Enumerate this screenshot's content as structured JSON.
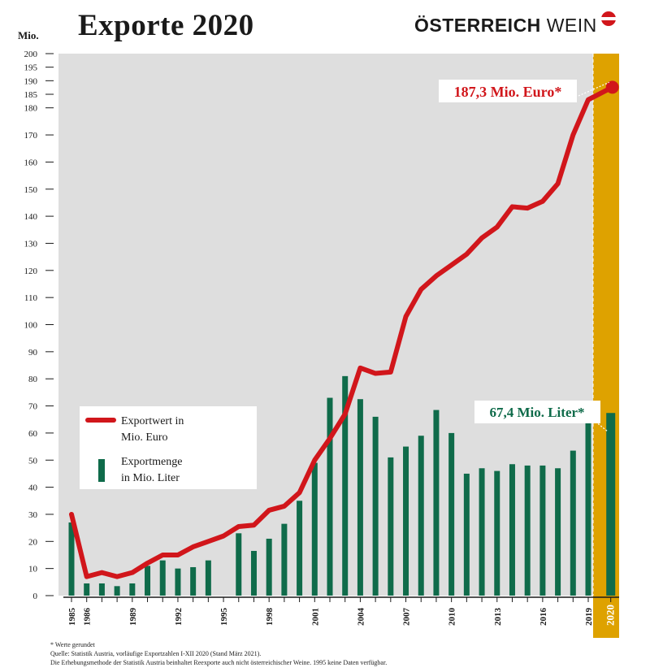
{
  "header": {
    "title": "Exporte 2020",
    "logo_bold": "ÖSTERREICH",
    "logo_light": "WEIN"
  },
  "annotations": {
    "value_label": "187,3 Mio. Euro*",
    "volume_label": "67,4 Mio. Liter*"
  },
  "footnotes": {
    "note": "* Werte gerundet",
    "source": "Quelle: Statistik Austria, vorläufige Exportzahlen I-XII 2020 (Stand März 2021).",
    "method": "Die Erhebungsmethode der Statistik Austria beinhaltet Reexporte auch nicht österreichischer Weine. 1995 keine Daten verfügbar."
  },
  "colors": {
    "line": "#d1161b",
    "bar": "#0f6b4a",
    "plot_bg": "#dedede",
    "highlight": "#dea200"
  },
  "chart_data": {
    "type": "bar",
    "title": "Exporte 2020",
    "ylabel": "Mio.",
    "ylim": [
      0,
      200
    ],
    "yticks": [
      0,
      10,
      20,
      30,
      40,
      50,
      60,
      70,
      80,
      90,
      100,
      110,
      120,
      130,
      140,
      150,
      160,
      170,
      180,
      185,
      190,
      195,
      200
    ],
    "x": [
      1985,
      1986,
      1987,
      1988,
      1989,
      1990,
      1991,
      1992,
      1993,
      1994,
      1995,
      1996,
      1997,
      1998,
      1999,
      2000,
      2001,
      2002,
      2003,
      2004,
      2005,
      2006,
      2007,
      2008,
      2009,
      2010,
      2011,
      2012,
      2013,
      2014,
      2015,
      2016,
      2017,
      2018,
      2019,
      2020
    ],
    "xtick_labels": [
      "1985",
      "1986",
      "1989",
      "1992",
      "1995",
      "1998",
      "2001",
      "2004",
      "2007",
      "2010",
      "2013",
      "2016",
      "2019",
      "2020"
    ],
    "highlight_year": 2020,
    "legend_position": "left",
    "series": [
      {
        "name": "Exportwert in Mio. Euro",
        "type": "line",
        "values": [
          30,
          7,
          8.5,
          7,
          8.5,
          12,
          15,
          15,
          18,
          20,
          22,
          25.5,
          26,
          31.5,
          33,
          38,
          50,
          58,
          67,
          84,
          82,
          82.5,
          103,
          113,
          118,
          122,
          126,
          132,
          136,
          143.5,
          143,
          145.5,
          152,
          170,
          183,
          187.3
        ]
      },
      {
        "name": "Exportmenge in Mio. Liter",
        "type": "bar",
        "values": [
          27,
          4.5,
          4.5,
          3.5,
          4.5,
          11,
          13,
          10,
          10.5,
          13,
          null,
          23,
          16.5,
          21,
          26.5,
          35,
          49,
          73,
          81,
          72.5,
          66,
          51,
          55,
          59,
          68.5,
          60,
          45,
          47,
          46,
          48.5,
          48,
          48,
          47,
          53.5,
          64.5,
          67.4
        ]
      }
    ]
  }
}
